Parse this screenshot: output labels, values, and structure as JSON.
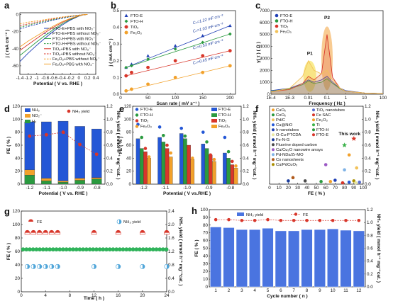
{
  "chart_data": [
    {
      "panel": "a",
      "type": "line",
      "xlabel": "Potential ( V vs. RHE )",
      "ylabel": "j ( mA cm⁻² )",
      "xlim": [
        -1.4,
        0.4
      ],
      "ylim": [
        -70,
        2
      ],
      "xticks": [
        -1.4,
        -1.2,
        -1.0,
        -0.8,
        -0.6,
        -0.4,
        -0.2,
        0.0,
        0.2,
        0.4
      ],
      "yticks": [
        -60,
        -40,
        -20,
        0
      ],
      "series": [
        {
          "name": "FTO-E+PBS with NO₃⁻",
          "color": "#1f3fb5",
          "dash": false,
          "x": [
            -1.4,
            -1.2,
            -1.0,
            -0.8,
            -0.6,
            -0.4,
            -0.2,
            0.0,
            0.1,
            0.2
          ],
          "y": [
            -55,
            -45,
            -36,
            -27.5,
            -19.5,
            -12.5,
            -6.5,
            -2,
            -0.6,
            0
          ]
        },
        {
          "name": "FTO-E+PBS without NO₃⁻",
          "color": "#1f3fb5",
          "dash": true,
          "x": [
            -1.4,
            -1.2,
            -1.0,
            -0.8,
            -0.6,
            -0.4,
            -0.2,
            0.0,
            0.1,
            0.2
          ],
          "y": [
            -17,
            -14,
            -11.5,
            -9,
            -6.5,
            -4.5,
            -2.6,
            -1,
            -0.3,
            0
          ]
        },
        {
          "name": "FTO-H+PBS with NO₃⁻",
          "color": "#2a9a3f",
          "dash": false,
          "x": [
            -1.4,
            -1.2,
            -1.0,
            -0.8,
            -0.6,
            -0.4,
            -0.2,
            0.0,
            0.1,
            0.2
          ],
          "y": [
            -48,
            -40,
            -32,
            -24.5,
            -17.5,
            -11,
            -5.8,
            -1.8,
            -0.5,
            0
          ]
        },
        {
          "name": "FTO-H+PBS without NO₃⁻",
          "color": "#2a9a3f",
          "dash": true,
          "x": [
            -1.4,
            -1.2,
            -1.0,
            -0.8,
            -0.6,
            -0.4,
            -0.2,
            0.0,
            0.1,
            0.2
          ],
          "y": [
            -15,
            -12.5,
            -10,
            -8,
            -5.8,
            -4,
            -2.3,
            -0.9,
            -0.3,
            0
          ]
        },
        {
          "name": "TiO₂+PBS with NO₃⁻",
          "color": "#d8362a",
          "dash": false,
          "x": [
            -1.4,
            -1.2,
            -1.0,
            -0.8,
            -0.6,
            -0.4,
            -0.2,
            0.0,
            0.1,
            0.2
          ],
          "y": [
            -42,
            -35,
            -28,
            -21,
            -15,
            -9.5,
            -5,
            -1.6,
            -0.4,
            0
          ]
        },
        {
          "name": "TiO₂+PBS without NO₃⁻",
          "color": "#d8362a",
          "dash": true,
          "x": [
            -1.4,
            -1.2,
            -1.0,
            -0.8,
            -0.6,
            -0.4,
            -0.2,
            0.0,
            0.1,
            0.2
          ],
          "y": [
            -13,
            -11,
            -9,
            -7,
            -5,
            -3.5,
            -2,
            -0.8,
            -0.25,
            0
          ]
        },
        {
          "name": "Fe₂O₃+PBS without NO₃⁻",
          "color": "#f2a12b",
          "dash": true,
          "x": [
            -1.4,
            -1.2,
            -1.0,
            -0.8,
            -0.6,
            -0.4,
            -0.2,
            0.0,
            0.1,
            0.2
          ],
          "y": [
            -11,
            -9,
            -7.5,
            -6,
            -4.3,
            -3,
            -1.7,
            -0.7,
            -0.2,
            0
          ]
        },
        {
          "name": "Fe₂O₃+PBS with NO₃⁻",
          "color": "#f2a12b",
          "dash": false,
          "x": [
            -1.4,
            -1.2,
            -1.0,
            -0.8,
            -0.6,
            -0.4,
            -0.2,
            0.0,
            0.1,
            0.2
          ],
          "y": [
            -38,
            -31,
            -25,
            -19,
            -13.5,
            -8.5,
            -4.5,
            -1.4,
            -0.4,
            0
          ]
        }
      ]
    },
    {
      "panel": "b",
      "type": "scatter",
      "xlabel": "Scan rate ( mV s⁻¹ )",
      "ylabel": "j ( mA cm⁻² )",
      "xlim": [
        0,
        210
      ],
      "ylim": [
        0,
        0.5
      ],
      "xticks": [
        0,
        50,
        100,
        150,
        200
      ],
      "yticks": [
        0.0,
        0.1,
        0.2,
        0.3,
        0.4,
        0.5
      ],
      "series": [
        {
          "name": "FTO-E",
          "color": "#1f3fb5",
          "marker": "triangle",
          "x": [
            10,
            20,
            50,
            100,
            150,
            200
          ],
          "y": [
            0.16,
            0.18,
            0.23,
            0.29,
            0.35,
            0.41
          ],
          "annotation": "Cₙ=1.22 mF cm⁻²"
        },
        {
          "name": "FTO-H",
          "color": "#2a9a3f",
          "marker": "diamond",
          "x": [
            10,
            20,
            50,
            100,
            150,
            200
          ],
          "y": [
            0.16,
            0.17,
            0.21,
            0.27,
            0.31,
            0.36
          ],
          "annotation": "Cₙ=1.03 mF cm⁻²"
        },
        {
          "name": "TiO₂",
          "color": "#d8362a",
          "marker": "circle",
          "x": [
            10,
            20,
            50,
            100,
            150,
            200
          ],
          "y": [
            0.11,
            0.13,
            0.16,
            0.2,
            0.23,
            0.26
          ],
          "annotation": "Cₙ=0.53 mF cm⁻²"
        },
        {
          "name": "Fe₂O₃",
          "color": "#f2a12b",
          "marker": "circle",
          "x": [
            10,
            20,
            50,
            100,
            150,
            200
          ],
          "y": [
            0.02,
            0.03,
            0.06,
            0.1,
            0.13,
            0.17
          ],
          "annotation": "Cₙ=0.45 mF cm⁻²"
        }
      ]
    },
    {
      "panel": "c",
      "type": "line",
      "xlabel": "Frequency ( Hz )",
      "ylabel": "γ( τ ) ( Ω )",
      "xscale": "log",
      "xlim": [
        0.0001,
        100
      ],
      "ylim": [
        0,
        7000
      ],
      "xticks": [
        "1E-4",
        "1E-3",
        "0.01",
        "0.1",
        "1",
        "10",
        "100"
      ],
      "yticks": [
        0,
        1000,
        2000,
        3000,
        4000,
        5000,
        6000,
        7000
      ],
      "peak_labels": [
        "P1",
        "P2"
      ],
      "series": [
        {
          "name": "FTO-E",
          "color": "#1f3fb5",
          "x": [
            0.0001,
            0.001,
            0.005,
            0.01,
            0.02,
            0.05,
            0.1,
            0.2,
            0.5,
            1,
            10,
            100
          ],
          "y": [
            300,
            500,
            900,
            1200,
            1000,
            1200,
            1500,
            1000,
            500,
            300,
            100,
            50
          ]
        },
        {
          "name": "FTO-H",
          "color": "#2a9a3f",
          "x": [
            0.0001,
            0.001,
            0.005,
            0.01,
            0.02,
            0.05,
            0.1,
            0.2,
            0.5,
            1,
            10,
            100
          ],
          "y": [
            250,
            450,
            800,
            1100,
            900,
            1000,
            1300,
            900,
            450,
            250,
            100,
            50
          ]
        },
        {
          "name": "TiO₂",
          "color": "#d8362a",
          "x": [
            0.0001,
            0.001,
            0.005,
            0.01,
            0.02,
            0.05,
            0.1,
            0.2,
            0.5,
            1,
            10,
            100
          ],
          "y": [
            200,
            400,
            900,
            1500,
            1200,
            1700,
            5000,
            1400,
            500,
            250,
            100,
            50
          ]
        },
        {
          "name": "Fe₂O₃",
          "color": "#f2c25a",
          "x": [
            0.0001,
            0.001,
            0.005,
            0.01,
            0.02,
            0.05,
            0.1,
            0.2,
            0.5,
            1,
            10,
            100
          ],
          "y": [
            200,
            500,
            1500,
            2800,
            2000,
            1700,
            2000,
            1200,
            500,
            250,
            100,
            50
          ]
        }
      ]
    },
    {
      "panel": "d",
      "type": "bar",
      "xlabel": "Potential ( V vs. RHE )",
      "ylabel": "FE ( % )",
      "ylabel_right": "NH₃ yield ( mmol h⁻¹ mg⁻¹cat. )",
      "ylim": [
        0,
        120
      ],
      "ylim_right": [
        0,
        1.2
      ],
      "categories": [
        "-1.2",
        "-1.1",
        "-1.0",
        "-0.9",
        "-0.8"
      ],
      "series": [
        {
          "name": "H₂",
          "color": "#2a9a3f",
          "values": [
            14,
            5,
            3,
            6,
            8
          ]
        },
        {
          "name": "NO₂⁻",
          "color": "#f2a12b",
          "values": [
            8,
            4,
            2,
            3,
            2
          ]
        },
        {
          "name": "NH₃",
          "color": "#2457d6",
          "values": [
            74,
            87,
            92,
            80,
            75
          ]
        }
      ],
      "line_series": {
        "name": "NH₃ yield",
        "color": "#d8362a",
        "values": [
          0.74,
          0.76,
          0.8,
          0.61,
          0.46
        ]
      },
      "legend": [
        "NH₃",
        "NO₂⁻",
        "H₂",
        "NH₃ yield"
      ]
    },
    {
      "panel": "e",
      "type": "bar",
      "xlabel": "Potential ( V vs.RHE )",
      "ylabel": "FE ( % )",
      "ylabel_right": "NH₃ yield ( mmol h⁻¹ mg⁻¹cat. )",
      "ylim": [
        0,
        120
      ],
      "ylim_right": [
        0,
        1.2
      ],
      "categories": [
        "-1.2",
        "-1.1",
        "-1.0",
        "-0.9",
        "-0.8"
      ],
      "series": [
        {
          "name": "FTO-E",
          "color": "#2457d6",
          "values": [
            70,
            72,
            78,
            62,
            48
          ]
        },
        {
          "name": "FTO-H",
          "color": "#2a9a3f",
          "values": [
            55,
            65,
            70,
            55,
            40
          ]
        },
        {
          "name": "TiO₂",
          "color": "#d8362a",
          "values": [
            50,
            55,
            60,
            45,
            30
          ]
        },
        {
          "name": "Fe₂O₃",
          "color": "#f2a12b",
          "values": [
            40,
            42,
            38,
            35,
            25
          ]
        }
      ],
      "yield_series": [
        {
          "name": "FTO-E",
          "color": "#2457d6",
          "values": [
            0.92,
            0.88,
            0.86,
            0.8,
            0.72
          ]
        },
        {
          "name": "FTO-H",
          "color": "#2a9a3f",
          "values": [
            0.72,
            0.75,
            0.74,
            0.65,
            0.5
          ]
        },
        {
          "name": "TiO₂",
          "color": "#d8362a",
          "values": [
            0.55,
            0.6,
            0.55,
            0.45,
            0.35
          ]
        },
        {
          "name": "Fe₂O₃",
          "color": "#f2a12b",
          "values": [
            0.42,
            0.48,
            0.4,
            0.38,
            0.28
          ]
        }
      ],
      "legend_left": [
        "FTO-E",
        "FTO-H",
        "TiO₂",
        "Fe₂O₃"
      ],
      "legend_right": [
        "FTO-E",
        "FTO-H",
        "TiO₂",
        "Fe₂O₃"
      ]
    },
    {
      "panel": "f",
      "type": "scatter",
      "xlabel": "FE ( % )",
      "ylabel": "NH₃ yield ( mmol h⁻¹ mg⁻¹cat. )",
      "xlim": [
        0,
        100
      ],
      "ylim": [
        0,
        1.2
      ],
      "xticks": [
        0,
        10,
        20,
        30,
        40,
        50,
        60,
        70,
        80,
        90,
        100
      ],
      "yticks": [
        0.0,
        0.2,
        0.4,
        0.6,
        0.8,
        1.0,
        1.2
      ],
      "annotation": "This work",
      "legend": [
        {
          "label": "CuOₓ",
          "color": "#f2a12b"
        },
        {
          "label": "CoOₓ",
          "color": "#2a9a3f"
        },
        {
          "label": "Pd/C",
          "color": "#f2c25a"
        },
        {
          "label": "Cu@NiO",
          "color": "#2457d6"
        },
        {
          "label": "Ir nanotubes",
          "color": "#1f3fb5"
        },
        {
          "label": "O-Cu-PTCDA",
          "color": "#e8e6a0"
        },
        {
          "label": "Fe-N-G",
          "color": "#1a3c9c"
        },
        {
          "label": "Fluorine doped carbon",
          "color": "#4a4a4a"
        },
        {
          "label": "Cu/Cu₂O nanowire arrays",
          "color": "#9b58c4"
        },
        {
          "label": "Pd-NDs/Zr-MO",
          "color": "#7fb3e6"
        },
        {
          "label": "Co nanosheets",
          "color": "#b05a1c"
        },
        {
          "label": "Cu/PdCuOₓ",
          "color": "#a98e00"
        },
        {
          "label": "TiO₂ nanotubes",
          "color": "#5a6fd1"
        },
        {
          "label": "Fe SAC",
          "color": "#d8362a"
        },
        {
          "label": "Fe₂O₃",
          "color": "#f2a12b"
        },
        {
          "label": "Ti",
          "color": "#3bb24a"
        },
        {
          "label": "FTO-H",
          "color": "#2a9a3f"
        },
        {
          "label": "FTO-E",
          "color": "#d8362a"
        }
      ],
      "points": [
        {
          "x": 90,
          "y": 0.7,
          "color": "#d8362a",
          "marker": "star"
        },
        {
          "x": 80,
          "y": 0.6,
          "color": "#3bb24a",
          "marker": "star"
        },
        {
          "x": 85,
          "y": 0.45,
          "color": "#f2a12b"
        },
        {
          "x": 60,
          "y": 0.3,
          "color": "#9b58c4"
        },
        {
          "x": 93,
          "y": 0.25,
          "color": "#f2c25a"
        },
        {
          "x": 80,
          "y": 0.22,
          "color": "#7fb3e6"
        },
        {
          "x": 25,
          "y": 0.1,
          "color": "#b05a1c"
        },
        {
          "x": 20,
          "y": 0.05,
          "color": "#1a3c9c"
        },
        {
          "x": 38,
          "y": 0.05,
          "color": "#4a4a4a"
        },
        {
          "x": 55,
          "y": 0.04,
          "color": "#2a9a3f"
        },
        {
          "x": 70,
          "y": 0.06,
          "color": "#1f3fb5"
        },
        {
          "x": 85,
          "y": 0.03,
          "color": "#2457d6"
        },
        {
          "x": 90,
          "y": 0.05,
          "color": "#a98e00"
        },
        {
          "x": 96,
          "y": 0.03,
          "color": "#5a6fd1"
        },
        {
          "x": 92,
          "y": 0.02,
          "color": "#e8e6a0"
        },
        {
          "x": 78,
          "y": 0.02,
          "color": "#d8362a"
        },
        {
          "x": 65,
          "y": 0.04,
          "color": "#f2a12b"
        }
      ]
    },
    {
      "panel": "g",
      "type": "scatter",
      "xlabel": "Time ( h )",
      "ylabel": "FE ( % )",
      "ylabel_right": "NH₃ yield ( mmol h⁻¹ mg⁻¹cat. )",
      "xlim": [
        0,
        24
      ],
      "ylim": [
        0,
        120
      ],
      "ylim_right": [
        0,
        2.4
      ],
      "xticks": [
        0,
        4,
        8,
        12,
        16,
        20,
        24
      ],
      "yticks": [
        0,
        20,
        40,
        60,
        80,
        100,
        120
      ],
      "yticks_right": [
        0.0,
        0.4,
        0.8,
        1.2,
        1.6,
        2.0,
        2.4
      ],
      "series": [
        {
          "name": "FE",
          "color": "#d8362a",
          "x": [
            1,
            2,
            3,
            4,
            5,
            6,
            12,
            16,
            20,
            24
          ],
          "y": [
            88,
            88,
            88,
            88,
            88,
            88,
            88,
            88,
            88,
            88
          ]
        },
        {
          "name": "NH₃ yield",
          "color": "#4fa5d9",
          "x": [
            1,
            2,
            3,
            4,
            5,
            6,
            12,
            16,
            20,
            24
          ],
          "y": [
            0.75,
            0.75,
            0.75,
            0.75,
            0.75,
            0.75,
            0.75,
            0.75,
            0.75,
            0.75
          ]
        }
      ],
      "band_value": 63
    },
    {
      "panel": "h",
      "type": "bar",
      "xlabel": "Cycle number ( n )",
      "ylabel": "FE ( % )",
      "ylabel_right": "NH₃ yield ( mmol h⁻¹ mg⁻¹cat. )",
      "ylim": [
        0,
        100
      ],
      "ylim_right": [
        0,
        1.2
      ],
      "categories": [
        "1",
        "2",
        "3",
        "4",
        "5",
        "6",
        "7",
        "8",
        "9",
        "10",
        "11",
        "12"
      ],
      "yticks": [
        0,
        10,
        20,
        30,
        40,
        50,
        60,
        70,
        80,
        90,
        100
      ],
      "yticks_right": [
        0.0,
        0.2,
        0.4,
        0.6,
        0.8,
        1.0,
        1.2
      ],
      "series": [
        {
          "name": "NH₃ yield",
          "color": "#4a74e0",
          "values": [
            0.93,
            0.92,
            0.89,
            0.89,
            0.91,
            0.87,
            0.87,
            0.89,
            0.89,
            0.9,
            0.88,
            0.87
          ]
        }
      ],
      "line_series": {
        "name": "FE",
        "color": "#d8362a",
        "values": [
          87,
          87,
          86,
          86,
          87,
          86,
          86,
          86,
          86,
          86,
          86,
          86
        ]
      }
    }
  ]
}
